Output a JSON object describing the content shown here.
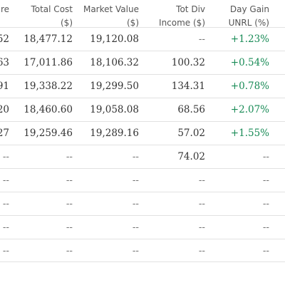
{
  "headers": [
    {
      "lines": [
        "are"
      ]
    },
    {
      "lines": [
        "Total Cost",
        "($)"
      ]
    },
    {
      "lines": [
        "Market Value",
        "($)"
      ]
    },
    {
      "lines": [
        "Tot Div",
        "Income ($)"
      ]
    },
    {
      "lines": [
        "Day Gain",
        "UNRL (%)"
      ]
    }
  ],
  "rows": [
    {
      "c0": "52",
      "c1": "18,477.12",
      "c2": "19,120.08",
      "c3": "--",
      "c4": "+1.23%"
    },
    {
      "c0": "63",
      "c1": "17,011.86",
      "c2": "18,106.32",
      "c3": "100.32",
      "c4": "+0.54%"
    },
    {
      "c0": "91",
      "c1": "19,338.22",
      "c2": "19,299.50",
      "c3": "134.31",
      "c4": "+0.78%"
    },
    {
      "c0": "20",
      "c1": "18,460.60",
      "c2": "19,058.08",
      "c3": "68.56",
      "c4": "+2.07%"
    },
    {
      "c0": "27",
      "c1": "19,259.46",
      "c2": "19,289.16",
      "c3": "57.02",
      "c4": "+1.55%"
    },
    {
      "c0": "--",
      "c1": "--",
      "c2": "--",
      "c3": "74.02",
      "c4": "--"
    },
    {
      "c0": "--",
      "c1": "--",
      "c2": "--",
      "c3": "--",
      "c4": "--"
    },
    {
      "c0": "--",
      "c1": "--",
      "c2": "--",
      "c3": "--",
      "c4": "--"
    },
    {
      "c0": "--",
      "c1": "--",
      "c2": "--",
      "c3": "--",
      "c4": "--"
    },
    {
      "c0": "--",
      "c1": "--",
      "c2": "--",
      "c3": "--",
      "c4": "--"
    }
  ],
  "colors": {
    "gain_positive": "#178a55",
    "text": "#333333",
    "header_text": "#555555",
    "row_divider": "#e2e2e2"
  }
}
